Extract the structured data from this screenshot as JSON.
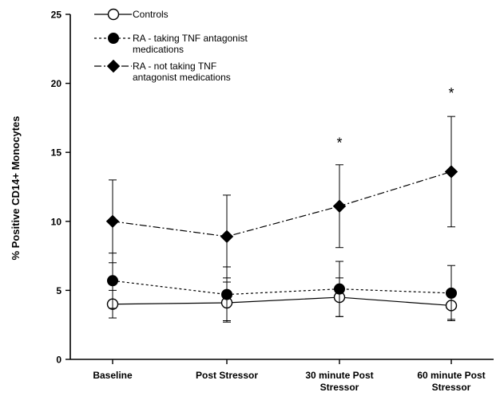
{
  "chart_data": {
    "type": "line",
    "title": "",
    "xlabel": "",
    "ylabel": "% Positive CD14+ Monocytes",
    "ylim": [
      0,
      25
    ],
    "yticks": [
      0,
      5,
      10,
      15,
      20,
      25
    ],
    "categories": [
      "Baseline",
      "Post Stressor",
      "30 minute Post Stressor",
      "60 minute Post Stressor"
    ],
    "category_lines": [
      [
        "Baseline"
      ],
      [
        "Post Stressor"
      ],
      [
        "30 minute Post",
        "Stressor"
      ],
      [
        "60 minute Post",
        "Stressor"
      ]
    ],
    "grid": false,
    "legend_position": "top-left",
    "series": [
      {
        "name": "Controls",
        "name_lines": [
          "Controls"
        ],
        "values": [
          4.0,
          4.1,
          4.5,
          3.9
        ],
        "error_upper": [
          5.0,
          5.6,
          5.9,
          4.9
        ],
        "error_lower": [
          3.0,
          2.8,
          3.1,
          2.9
        ],
        "marker": "open-circle",
        "line_style": "solid",
        "color": "#000000"
      },
      {
        "name": "RA - taking TNF antagonist medications",
        "name_lines": [
          "RA - taking TNF antagonist",
          "medications"
        ],
        "values": [
          5.7,
          4.7,
          5.1,
          4.8
        ],
        "error_upper": [
          7.7,
          6.7,
          7.1,
          6.8
        ],
        "error_lower": [
          3.7,
          2.7,
          3.1,
          2.8
        ],
        "marker": "filled-circle",
        "line_style": "dotted",
        "color": "#000000"
      },
      {
        "name": "RA - not taking TNF antagonist medications",
        "name_lines": [
          "RA - not taking TNF",
          "antagonist medications"
        ],
        "values": [
          10.0,
          8.9,
          11.1,
          13.6
        ],
        "error_upper": [
          13.0,
          11.9,
          14.1,
          17.6
        ],
        "error_lower": [
          7.0,
          5.9,
          8.1,
          9.6
        ],
        "marker": "filled-diamond",
        "line_style": "dash-dot",
        "color": "#000000"
      }
    ],
    "annotations": [
      {
        "text": "*",
        "category_index": 2,
        "y": 15.8
      },
      {
        "text": "*",
        "category_index": 3,
        "y": 19.4
      }
    ]
  }
}
